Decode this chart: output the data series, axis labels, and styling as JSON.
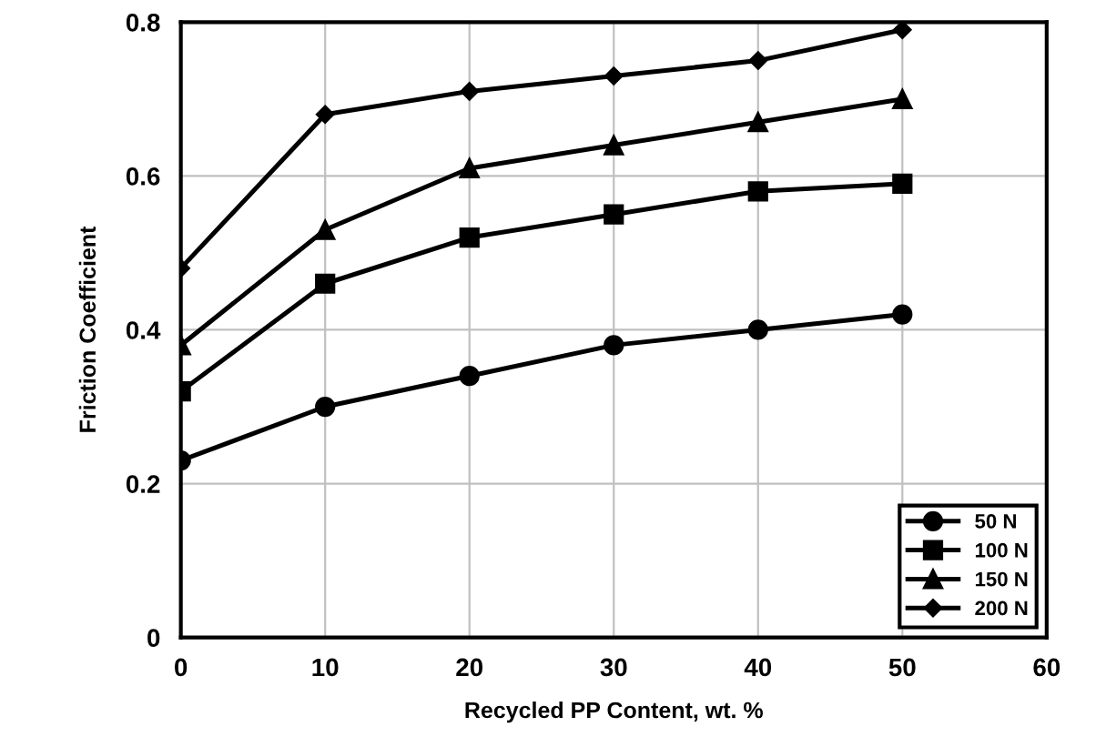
{
  "chart_data": {
    "type": "line",
    "xlabel": "Recycled PP Content, wt. %",
    "ylabel": "Friction Coefficient",
    "x": [
      0,
      10,
      20,
      30,
      40,
      50
    ],
    "series": [
      {
        "name": "50 N",
        "color": "#000000",
        "marker": "circle",
        "values": [
          0.23,
          0.3,
          0.34,
          0.38,
          0.4,
          0.42
        ]
      },
      {
        "name": "100 N",
        "color": "#000000",
        "marker": "square",
        "values": [
          0.32,
          0.46,
          0.52,
          0.55,
          0.58,
          0.59
        ]
      },
      {
        "name": "150 N",
        "color": "#000000",
        "marker": "triangle",
        "values": [
          0.38,
          0.53,
          0.61,
          0.64,
          0.67,
          0.7
        ]
      },
      {
        "name": "200 N",
        "color": "#000000",
        "marker": "diamond",
        "values": [
          0.48,
          0.68,
          0.71,
          0.73,
          0.75,
          0.79
        ]
      }
    ],
    "xlim": [
      0,
      60
    ],
    "xticks": [
      0,
      10,
      20,
      30,
      40,
      50,
      60
    ],
    "ylim": [
      0,
      0.8
    ],
    "yticks": [
      0,
      0.2,
      0.4,
      0.6,
      0.8
    ],
    "grid": true,
    "legend": "bottom right",
    "line_style": "solid"
  }
}
